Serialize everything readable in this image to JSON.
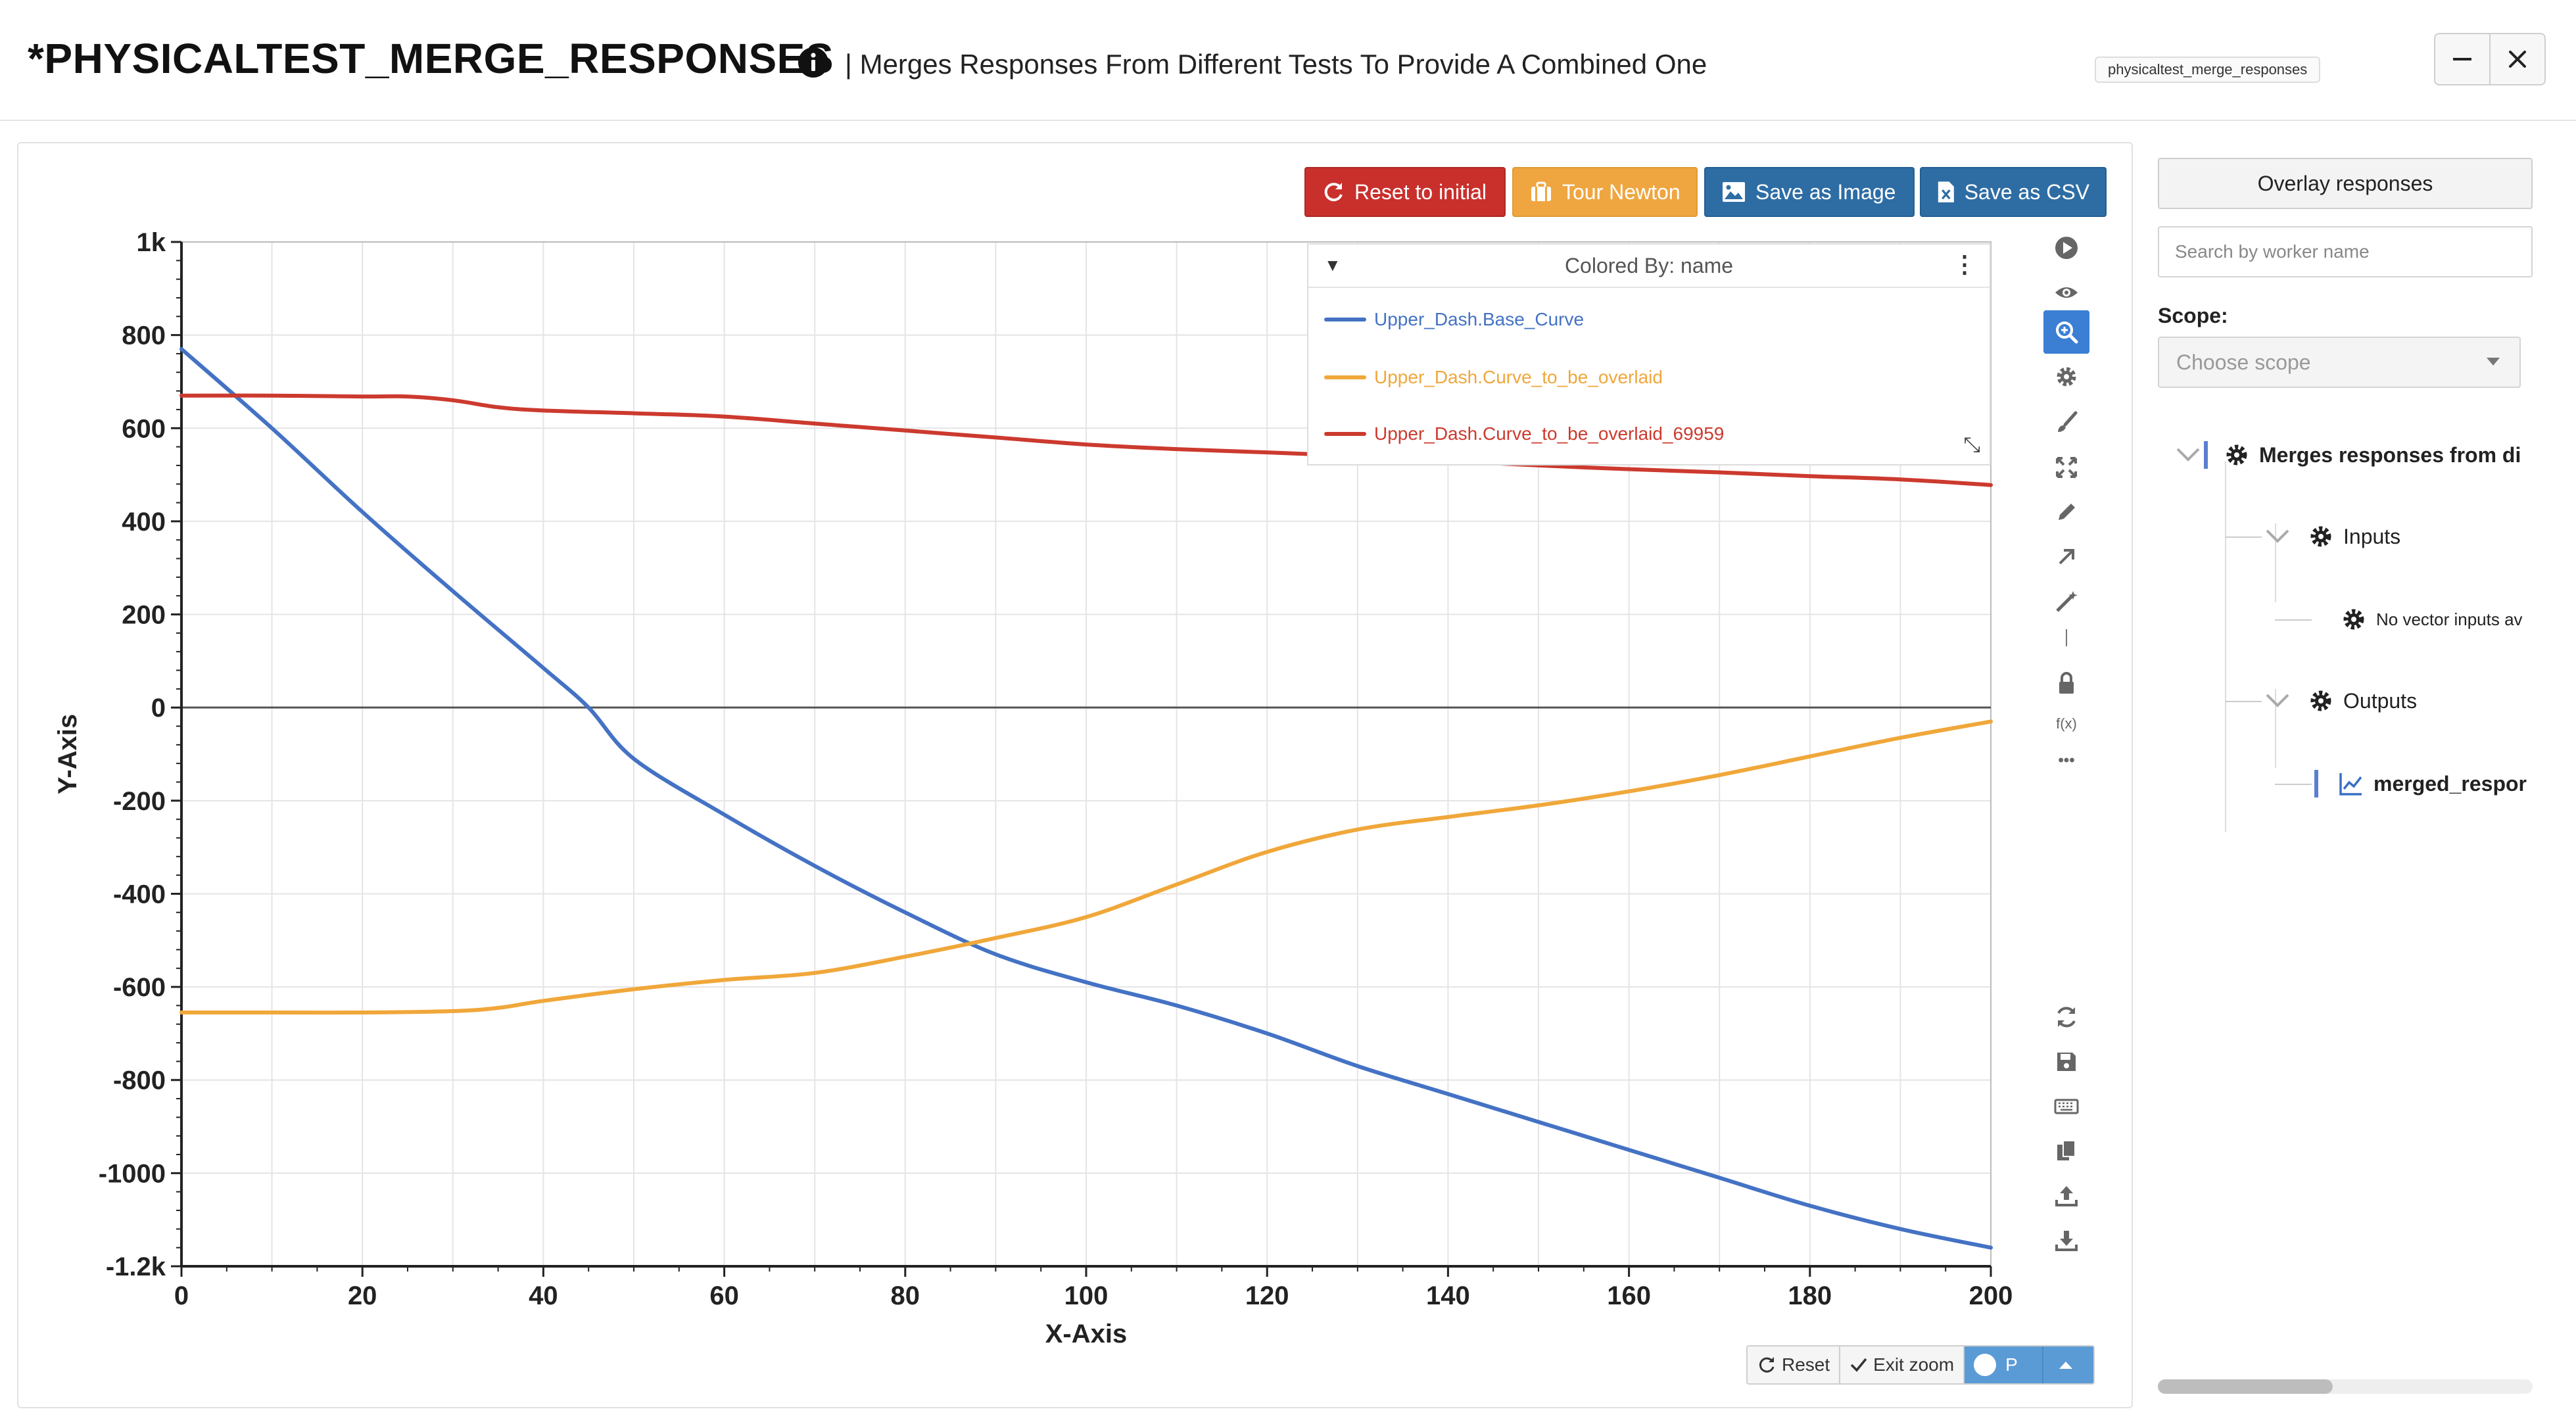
{
  "header": {
    "title": "*PHYSICALTEST_MERGE_RESPONSES",
    "subtitle": "| Merges Responses From Different Tests To Provide A Combined One",
    "tooltip": "physicaltest_merge_responses",
    "minimize_icon": "minimize-icon",
    "close_icon": "close-icon"
  },
  "toolbar": {
    "reset_label": "Reset to initial",
    "tour_label": "Tour Newton",
    "save_image_label": "Save as Image",
    "save_csv_label": "Save as CSV",
    "colors": {
      "danger": "#c9302c",
      "warning": "#efa640",
      "primary": "#2e6da4"
    }
  },
  "legend": {
    "title": "Colored By: name",
    "items": [
      {
        "label": "Upper_Dash.Base_Curve",
        "color": "#4472c4"
      },
      {
        "label": "Upper_Dash.Curve_to_be_overlaid",
        "color": "#f0a73a"
      },
      {
        "label": "Upper_Dash.Curve_to_be_overlaid_69959",
        "color": "#cc3a2e"
      }
    ]
  },
  "tools": {
    "top": [
      "play-icon",
      "eye-icon",
      "zoom-icon",
      "gear-icon",
      "brush-icon",
      "expand-icon",
      "pencil-icon",
      "arrow-icon",
      "magic-icon",
      "divider",
      "lock-icon",
      "fx-icon",
      "more-icon"
    ],
    "bottom": [
      "refresh-icon",
      "save-icon",
      "keyboard-icon",
      "copy-icon",
      "upload-icon",
      "download-icon"
    ],
    "fx_label": "f(x)",
    "more_label": "•••"
  },
  "zoom_controls": {
    "reset_label": "Reset",
    "exit_zoom_label": "Exit zoom",
    "toggle_label": "P"
  },
  "sidebar": {
    "overlay_label": "Overlay responses",
    "search_placeholder": "Search by worker name",
    "scope_label": "Scope:",
    "scope_placeholder": "Choose scope",
    "tree": {
      "root": "Merges responses from di",
      "inputs": "Inputs",
      "inputs_empty": "No vector inputs av",
      "outputs": "Outputs",
      "output_item": "merged_respor"
    }
  },
  "chart_data": {
    "type": "line",
    "xlabel": "X-Axis",
    "ylabel": "Y-Axis",
    "xlim": [
      0,
      200
    ],
    "ylim": [
      -1200,
      1000
    ],
    "x_ticks": [
      "0",
      "20",
      "40",
      "60",
      "80",
      "100",
      "120",
      "140",
      "160",
      "180",
      "200"
    ],
    "y_ticks": [
      "1k",
      "800",
      "600",
      "400",
      "200",
      "0",
      "-200",
      "-400",
      "-600",
      "-800",
      "-1000",
      "-1.2k"
    ],
    "grid": true,
    "legend_position": "top-right",
    "series": [
      {
        "name": "Upper_Dash.Base_Curve",
        "color": "#4472c4",
        "x": [
          0,
          10,
          20,
          30,
          40,
          45,
          50,
          60,
          70,
          80,
          90,
          100,
          110,
          120,
          130,
          140,
          150,
          160,
          170,
          180,
          190,
          200
        ],
        "y": [
          770,
          600,
          420,
          250,
          85,
          0,
          -110,
          -230,
          -340,
          -440,
          -530,
          -590,
          -640,
          -700,
          -770,
          -830,
          -890,
          -950,
          -1010,
          -1070,
          -1120,
          -1160
        ]
      },
      {
        "name": "Upper_Dash.Curve_to_be_overlaid",
        "color": "#f0a73a",
        "x": [
          0,
          10,
          20,
          30,
          35,
          40,
          50,
          60,
          70,
          80,
          90,
          100,
          110,
          120,
          130,
          140,
          150,
          160,
          170,
          180,
          190,
          200
        ],
        "y": [
          -655,
          -655,
          -655,
          -652,
          -645,
          -630,
          -605,
          -585,
          -570,
          -535,
          -495,
          -450,
          -380,
          -310,
          -262,
          -235,
          -210,
          -180,
          -145,
          -105,
          -65,
          -30
        ]
      },
      {
        "name": "Upper_Dash.Curve_to_be_overlaid_69959",
        "color": "#cc3a2e",
        "x": [
          0,
          10,
          20,
          25,
          30,
          35,
          40,
          50,
          60,
          70,
          80,
          90,
          100,
          110,
          120,
          130,
          140,
          150,
          160,
          170,
          180,
          190,
          200
        ],
        "y": [
          670,
          670,
          668,
          668,
          660,
          645,
          638,
          632,
          625,
          610,
          595,
          580,
          565,
          555,
          548,
          540,
          530,
          520,
          512,
          505,
          497,
          490,
          478
        ]
      }
    ]
  }
}
